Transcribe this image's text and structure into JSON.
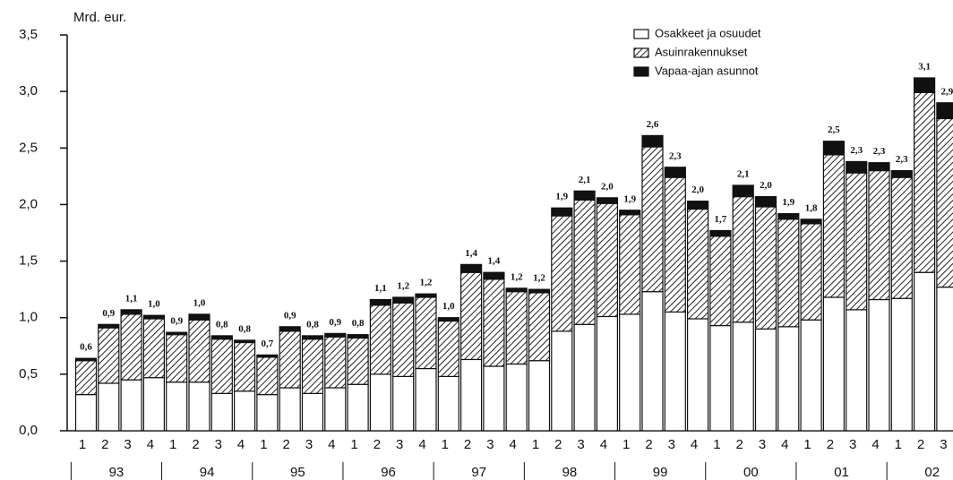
{
  "chart_data": {
    "type": "stacked_bar",
    "y_label": "Mrd. eur.",
    "categories": [
      "1",
      "2",
      "3",
      "4",
      "1",
      "2",
      "3",
      "4",
      "1",
      "2",
      "3",
      "4",
      "1",
      "2",
      "3",
      "4",
      "1",
      "2",
      "3",
      "4",
      "1",
      "2",
      "3",
      "4",
      "1",
      "2",
      "3",
      "4",
      "1",
      "2",
      "3",
      "4",
      "1",
      "2",
      "3",
      "4",
      "1",
      "2",
      "3"
    ],
    "groups": [
      "93",
      "94",
      "95",
      "96",
      "97",
      "98",
      "99",
      "00",
      "01",
      "02"
    ],
    "series": [
      {
        "name": "Osakkeet ja osuudet",
        "color": "#ffffff",
        "hatch": false,
        "values": [
          0.32,
          0.42,
          0.45,
          0.47,
          0.43,
          0.43,
          0.33,
          0.35,
          0.32,
          0.38,
          0.33,
          0.38,
          0.41,
          0.5,
          0.48,
          0.55,
          0.48,
          0.63,
          0.57,
          0.59,
          0.62,
          0.88,
          0.94,
          1.01,
          1.03,
          1.23,
          1.05,
          0.99,
          0.93,
          0.96,
          0.9,
          0.92,
          0.98,
          1.18,
          1.07,
          1.16,
          1.17,
          1.4,
          1.27
        ]
      },
      {
        "name": "Asuinrakennukset",
        "color": "#222222",
        "hatch": true,
        "values": [
          0.3,
          0.49,
          0.58,
          0.52,
          0.42,
          0.55,
          0.48,
          0.43,
          0.33,
          0.5,
          0.48,
          0.45,
          0.41,
          0.61,
          0.65,
          0.63,
          0.49,
          0.77,
          0.77,
          0.64,
          0.6,
          1.02,
          1.1,
          1.0,
          0.88,
          1.28,
          1.19,
          0.97,
          0.79,
          1.11,
          1.08,
          0.95,
          0.85,
          1.26,
          1.21,
          1.14,
          1.07,
          1.59,
          1.49
        ]
      },
      {
        "name": "Vapaa-ajan asunnot",
        "color": "#111111",
        "hatch": false,
        "values": [
          0.02,
          0.03,
          0.04,
          0.03,
          0.02,
          0.05,
          0.03,
          0.02,
          0.02,
          0.04,
          0.03,
          0.03,
          0.03,
          0.05,
          0.05,
          0.03,
          0.03,
          0.07,
          0.06,
          0.03,
          0.03,
          0.07,
          0.08,
          0.05,
          0.04,
          0.1,
          0.09,
          0.07,
          0.05,
          0.1,
          0.09,
          0.05,
          0.04,
          0.12,
          0.1,
          0.07,
          0.06,
          0.13,
          0.14
        ]
      }
    ],
    "total_labels": [
      "0,6",
      "0,9",
      "1,1",
      "1,0",
      "0,9",
      "1,0",
      "0,8",
      "0,8",
      "0,7",
      "0,9",
      "0,8",
      "0,9",
      "0,8",
      "1,1",
      "1,2",
      "1,2",
      "1,0",
      "1,4",
      "1,4",
      "1,2",
      "1,2",
      "1,9",
      "2,1",
      "2,0",
      "1,9",
      "2,6",
      "2,3",
      "2,0",
      "1,7",
      "2,1",
      "2,0",
      "1,9",
      "1,8",
      "2,5",
      "2,3",
      "2,3",
      "2,3",
      "3,1",
      "2,9"
    ],
    "ylim": [
      0,
      3.5
    ],
    "yticks": [
      {
        "value": 0,
        "label": "0,0"
      },
      {
        "value": 0.5,
        "label": "0,5"
      },
      {
        "value": 1,
        "label": "1,0"
      },
      {
        "value": 1.5,
        "label": "1,5"
      },
      {
        "value": 2,
        "label": "2,0"
      },
      {
        "value": 2.5,
        "label": "2,5"
      },
      {
        "value": 3,
        "label": "3,0"
      },
      {
        "value": 3.5,
        "label": "3,5"
      }
    ],
    "grid": false,
    "legend": "top-right"
  }
}
